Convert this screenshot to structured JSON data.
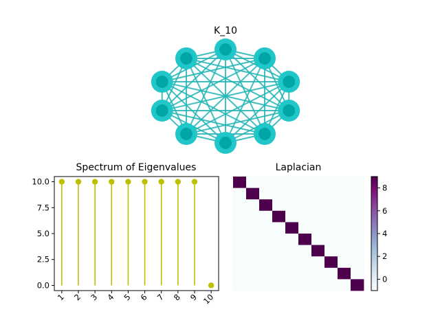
{
  "chart_data": [
    {
      "type": "network",
      "title": "K_10",
      "nodes": 10,
      "complete": true,
      "node_color": "#00a6a6",
      "node_ring_color": "#20c6c8",
      "edge_color": "#20b4b4"
    },
    {
      "type": "stem",
      "title": "Spectrum of Eigenvalues",
      "x": [
        1,
        2,
        3,
        4,
        5,
        6,
        7,
        8,
        9,
        10
      ],
      "xticks": [
        "1",
        "2",
        "3",
        "4",
        "5",
        "6",
        "7",
        "8",
        "9",
        "10"
      ],
      "values": [
        10,
        10,
        10,
        10,
        10,
        10,
        10,
        10,
        10,
        0
      ],
      "ylim": [
        -0.5,
        10.5
      ],
      "yticks": [
        "0.0",
        "2.5",
        "5.0",
        "7.5",
        "10.0"
      ],
      "ytick_values": [
        0,
        2.5,
        5,
        7.5,
        10
      ],
      "color": "#bfbf00"
    },
    {
      "type": "heatmap",
      "title": "Laplacian",
      "size": 10,
      "diagonal_value": 9,
      "offdiagonal_value": -1,
      "colormap": "BuPu",
      "colorbar_ticks": [
        "0",
        "2",
        "4",
        "6",
        "8"
      ],
      "colorbar_tick_values": [
        0,
        2,
        4,
        6,
        8
      ],
      "colorbar_range": [
        -1,
        9
      ],
      "color_low": "#f7fcfd",
      "color_high": "#4d004b"
    }
  ]
}
